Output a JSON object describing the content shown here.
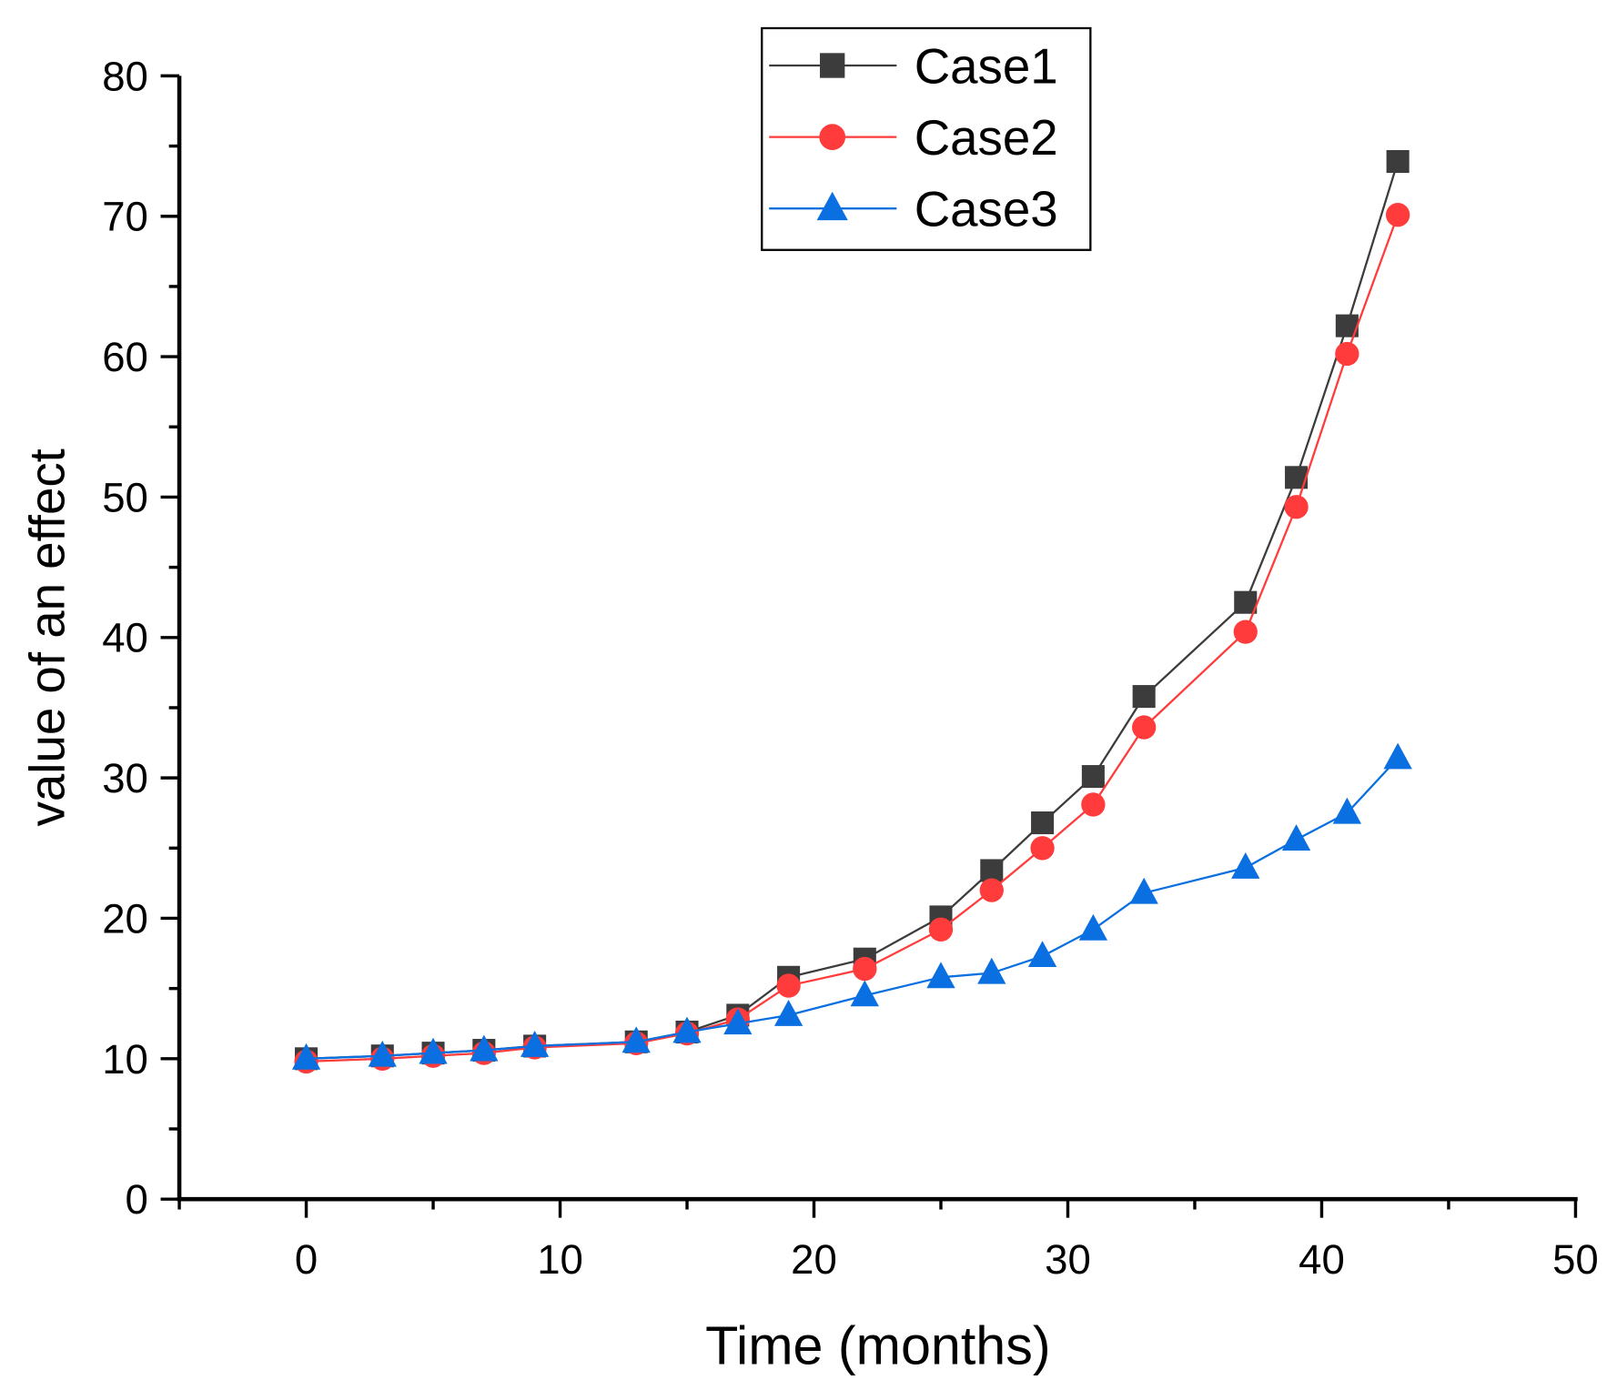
{
  "chart_data": {
    "type": "line",
    "title": "",
    "xlabel": "Time (months)",
    "ylabel": "value of an effect",
    "xlim": [
      -5,
      50
    ],
    "ylim": [
      0,
      80
    ],
    "xticks": [
      0,
      10,
      20,
      30,
      40,
      50
    ],
    "yticks": [
      0,
      10,
      20,
      30,
      40,
      50,
      60,
      70,
      80
    ],
    "grid": false,
    "legend_position": "top-center",
    "x": [
      0,
      3,
      5,
      7,
      9,
      13,
      15,
      17,
      19,
      22,
      25,
      27,
      29,
      31,
      33,
      37,
      39,
      41,
      43
    ],
    "series": [
      {
        "name": "Case1",
        "color": "#3c3c3c",
        "marker": "square",
        "values": [
          10.0,
          10.2,
          10.4,
          10.6,
          10.9,
          11.2,
          11.9,
          13.1,
          15.8,
          17.1,
          20.1,
          23.4,
          26.8,
          30.1,
          35.8,
          42.5,
          51.4,
          62.2,
          73.9
        ]
      },
      {
        "name": "Case2",
        "color": "#ff3b3b",
        "marker": "circle",
        "values": [
          9.8,
          10.0,
          10.2,
          10.4,
          10.8,
          11.1,
          11.8,
          12.8,
          15.2,
          16.4,
          19.2,
          22.0,
          25.0,
          28.1,
          33.6,
          40.4,
          49.3,
          60.2,
          70.1
        ]
      },
      {
        "name": "Case3",
        "color": "#0a6fe0",
        "marker": "triangle",
        "values": [
          10.0,
          10.2,
          10.4,
          10.6,
          10.9,
          11.2,
          11.9,
          12.5,
          13.1,
          14.5,
          15.8,
          16.1,
          17.3,
          19.2,
          21.8,
          23.6,
          25.6,
          27.5,
          31.4
        ]
      }
    ]
  }
}
